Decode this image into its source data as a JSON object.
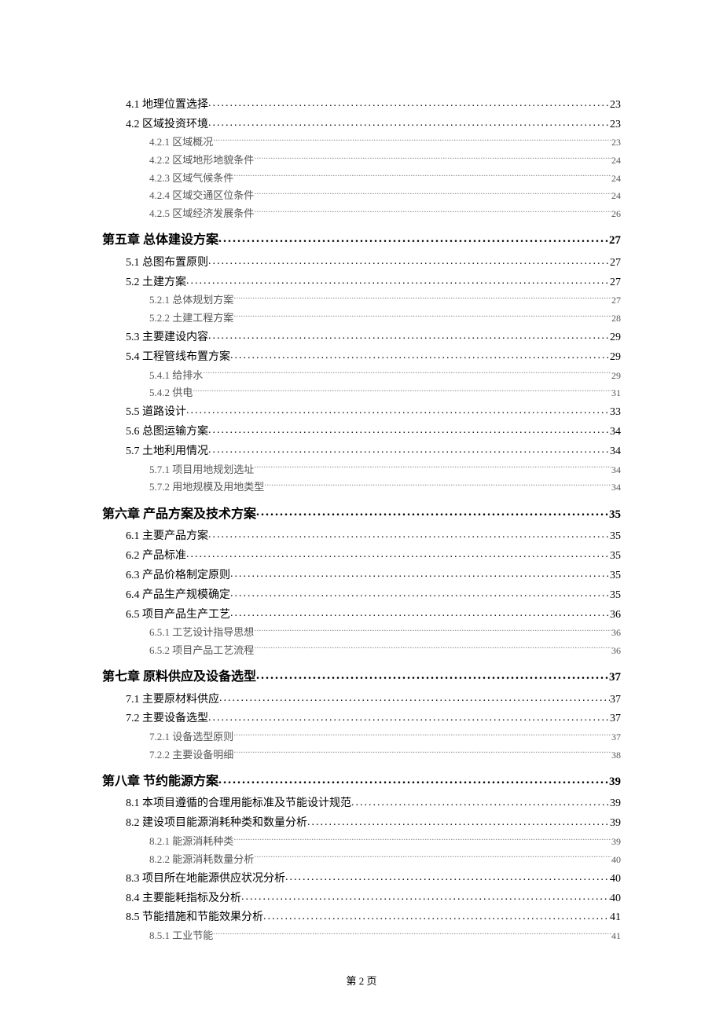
{
  "page_footer": "第 2 页",
  "styles": {
    "level1_fontsize": 16,
    "level2_fontsize": 14,
    "level3_fontsize": 13,
    "level3_color": "#555555",
    "background_color": "#ffffff",
    "text_color": "#000000"
  },
  "toc_entries": [
    {
      "level": 2,
      "label": "4.1 地理位置选择",
      "page": "23"
    },
    {
      "level": 2,
      "label": "4.2 区域投资环境",
      "page": "23"
    },
    {
      "level": 3,
      "label": "4.2.1 区域概况",
      "page": "23"
    },
    {
      "level": 3,
      "label": "4.2.2 区域地形地貌条件",
      "page": "24"
    },
    {
      "level": 3,
      "label": "4.2.3 区域气候条件",
      "page": "24"
    },
    {
      "level": 3,
      "label": "4.2.4 区域交通区位条件",
      "page": "24"
    },
    {
      "level": 3,
      "label": "4.2.5 区域经济发展条件",
      "page": "26"
    },
    {
      "level": 1,
      "label": "第五章  总体建设方案",
      "page": "27"
    },
    {
      "level": 2,
      "label": "5.1 总图布置原则",
      "page": "27"
    },
    {
      "level": 2,
      "label": "5.2 土建方案",
      "page": "27"
    },
    {
      "level": 3,
      "label": "5.2.1 总体规划方案",
      "page": "27"
    },
    {
      "level": 3,
      "label": "5.2.2 土建工程方案",
      "page": "28"
    },
    {
      "level": 2,
      "label": "5.3 主要建设内容",
      "page": "29"
    },
    {
      "level": 2,
      "label": "5.4 工程管线布置方案",
      "page": "29"
    },
    {
      "level": 3,
      "label": "5.4.1 给排水",
      "page": "29"
    },
    {
      "level": 3,
      "label": "5.4.2 供电",
      "page": "31"
    },
    {
      "level": 2,
      "label": "5.5 道路设计",
      "page": "33"
    },
    {
      "level": 2,
      "label": "5.6 总图运输方案",
      "page": "34"
    },
    {
      "level": 2,
      "label": "5.7 土地利用情况",
      "page": "34"
    },
    {
      "level": 3,
      "label": "5.7.1 项目用地规划选址",
      "page": "34"
    },
    {
      "level": 3,
      "label": "5.7.2 用地规模及用地类型",
      "page": "34"
    },
    {
      "level": 1,
      "label": "第六章  产品方案及技术方案",
      "page": "35"
    },
    {
      "level": 2,
      "label": "6.1 主要产品方案",
      "page": "35"
    },
    {
      "level": 2,
      "label": "6.2 产品标准",
      "page": "35"
    },
    {
      "level": 2,
      "label": "6.3 产品价格制定原则",
      "page": "35"
    },
    {
      "level": 2,
      "label": "6.4 产品生产规模确定",
      "page": "35"
    },
    {
      "level": 2,
      "label": "6.5 项目产品生产工艺",
      "page": "36"
    },
    {
      "level": 3,
      "label": "6.5.1 工艺设计指导思想",
      "page": "36"
    },
    {
      "level": 3,
      "label": "6.5.2 项目产品工艺流程",
      "page": "36"
    },
    {
      "level": 1,
      "label": "第七章  原料供应及设备选型",
      "page": "37"
    },
    {
      "level": 2,
      "label": "7.1 主要原材料供应",
      "page": "37"
    },
    {
      "level": 2,
      "label": "7.2 主要设备选型",
      "page": "37"
    },
    {
      "level": 3,
      "label": "7.2.1 设备选型原则",
      "page": "37"
    },
    {
      "level": 3,
      "label": "7.2.2 主要设备明细",
      "page": "38"
    },
    {
      "level": 1,
      "label": "第八章  节约能源方案",
      "page": "39"
    },
    {
      "level": 2,
      "label": "8.1 本项目遵循的合理用能标准及节能设计规范",
      "page": "39"
    },
    {
      "level": 2,
      "label": "8.2 建设项目能源消耗种类和数量分析",
      "page": "39"
    },
    {
      "level": 3,
      "label": "8.2.1 能源消耗种类",
      "page": "39"
    },
    {
      "level": 3,
      "label": "8.2.2 能源消耗数量分析",
      "page": "40"
    },
    {
      "level": 2,
      "label": "8.3 项目所在地能源供应状况分析",
      "page": "40"
    },
    {
      "level": 2,
      "label": "8.4 主要能耗指标及分析",
      "page": "40"
    },
    {
      "level": 2,
      "label": "8.5 节能措施和节能效果分析",
      "page": "41"
    },
    {
      "level": 3,
      "label": "8.5.1 工业节能",
      "page": "41"
    }
  ]
}
